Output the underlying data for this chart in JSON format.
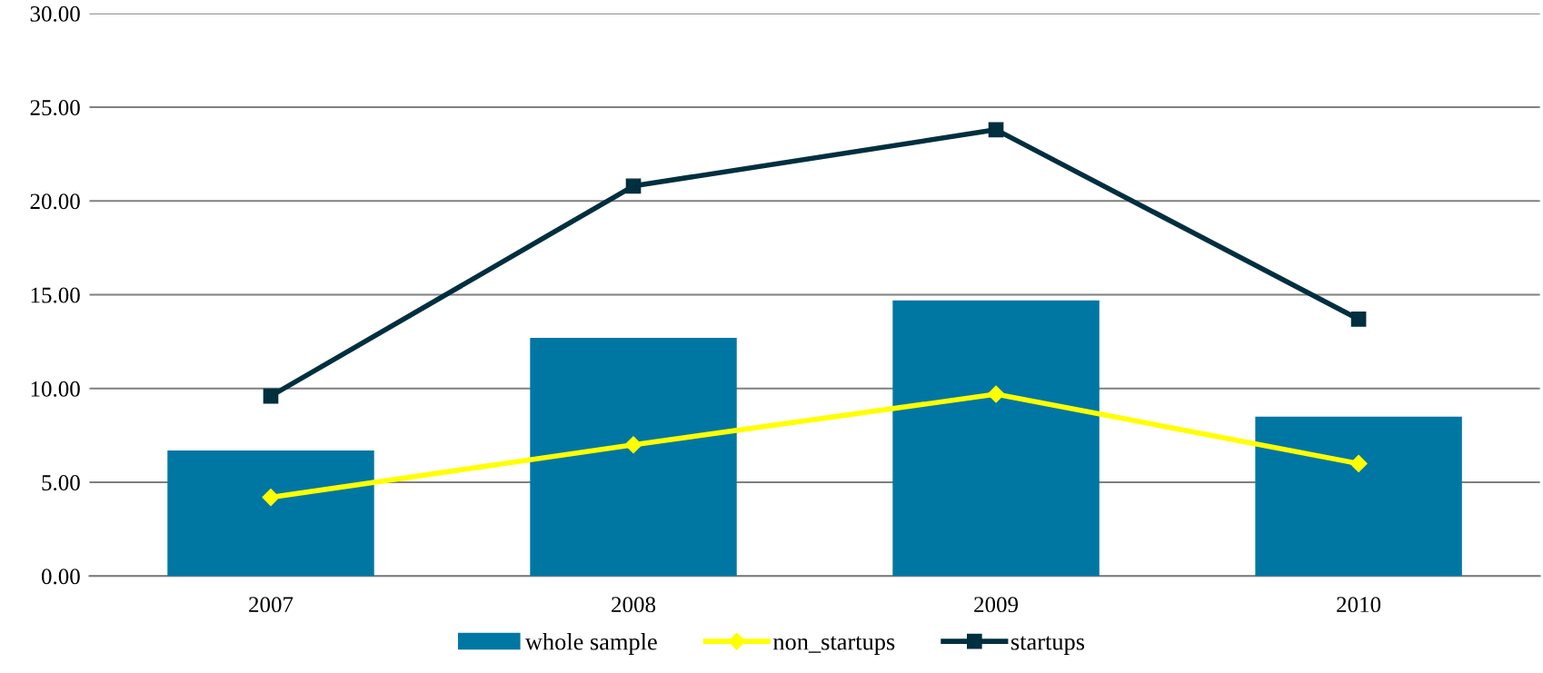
{
  "chart_data": {
    "type": "bar",
    "categories": [
      "2007",
      "2008",
      "2009",
      "2010"
    ],
    "series": [
      {
        "name": "whole sample",
        "color": "#0077a3",
        "values": [
          6.7,
          12.7,
          14.7,
          8.5
        ]
      },
      {
        "name": "non_startups",
        "type": "line",
        "color": "#ffff00",
        "marker": "diamond",
        "values": [
          4.2,
          7.0,
          9.7,
          6.0
        ]
      },
      {
        "name": "startups",
        "type": "line",
        "color": "#002f3f",
        "marker": "square",
        "values": [
          9.6,
          20.8,
          23.8,
          13.7
        ]
      }
    ],
    "ylim": [
      0,
      30
    ],
    "yticks": [
      {
        "value": 0,
        "label": "0.00"
      },
      {
        "value": 5,
        "label": "5.00"
      },
      {
        "value": 10,
        "label": "10.00"
      },
      {
        "value": 15,
        "label": "15.00"
      },
      {
        "value": 20,
        "label": "20.00"
      },
      {
        "value": 25,
        "label": "25.00"
      },
      {
        "value": 30,
        "label": "30.00"
      }
    ],
    "grid": "y",
    "legend": "bottom"
  }
}
